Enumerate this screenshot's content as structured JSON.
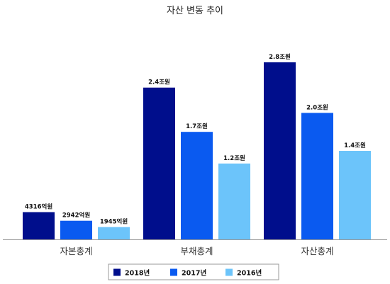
{
  "chart_data": {
    "type": "bar",
    "title": "자산 변동 추이",
    "categories": [
      "자본총계",
      "부채총계",
      "자산총계"
    ],
    "units": "조원",
    "series": [
      {
        "name": "2018년",
        "color": "#000E8C",
        "values": [
          0.4316,
          2.4,
          2.8
        ],
        "labels": [
          "4316억원",
          "2.4조원",
          "2.8조원"
        ]
      },
      {
        "name": "2017년",
        "color": "#0A5AF0",
        "values": [
          0.2942,
          1.7,
          2.0
        ],
        "labels": [
          "2942억원",
          "1.7조원",
          "2.0조원"
        ]
      },
      {
        "name": "2016년",
        "color": "#6CC4FA",
        "values": [
          0.1945,
          1.2,
          1.4
        ],
        "labels": [
          "1945억원",
          "1.2조원",
          "1.4조원"
        ]
      }
    ],
    "ylim": [
      0,
      3.0
    ],
    "grid": false,
    "legend_position": "bottom"
  }
}
